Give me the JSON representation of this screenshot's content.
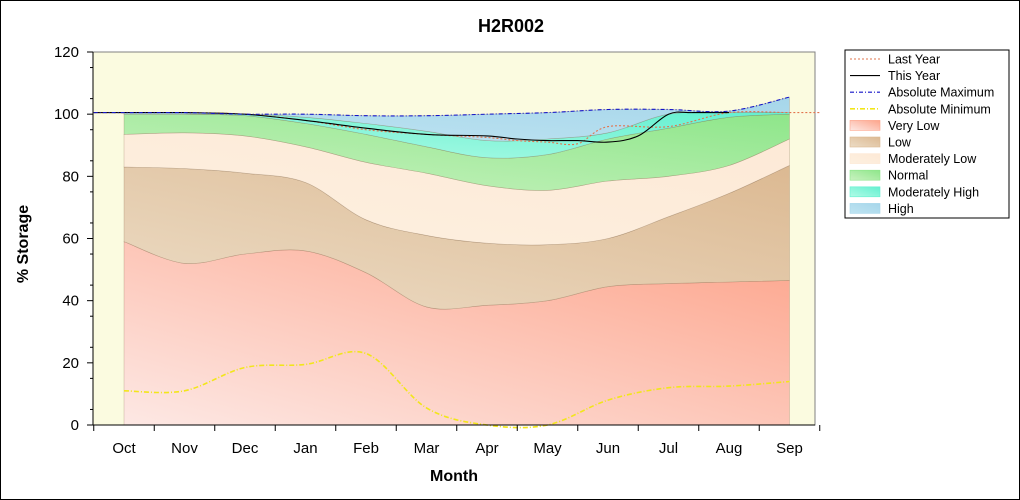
{
  "chart_data": {
    "type": "area",
    "title": "H2R002",
    "xlabel": "Month",
    "ylabel": "% Storage",
    "categories": [
      "Oct",
      "Nov",
      "Dec",
      "Jan",
      "Feb",
      "Mar",
      "Apr",
      "May",
      "Jun",
      "Jul",
      "Aug",
      "Sep"
    ],
    "ylim": [
      0,
      120
    ],
    "yticks": [
      0,
      20,
      40,
      60,
      80,
      100,
      120
    ],
    "bands": [
      {
        "name": "Very Low",
        "colors": [
          "#fde8e4",
          "#fda48b"
        ],
        "lower": [
          0,
          0,
          0,
          0,
          0,
          0,
          0,
          0,
          0,
          0,
          0,
          0
        ],
        "upper": [
          59,
          52,
          55,
          56,
          49,
          38,
          38.5,
          40,
          44.5,
          45.5,
          46,
          46.5
        ]
      },
      {
        "name": "Low",
        "colors": [
          "#ecdcc5",
          "#dcb992"
        ],
        "lower": [
          59,
          52,
          55,
          56,
          49,
          38,
          38.5,
          40,
          44.5,
          45.5,
          46,
          46.5
        ],
        "upper": [
          83,
          82.5,
          81,
          78,
          66,
          61,
          58.5,
          58,
          60,
          67,
          74.5,
          83.5
        ]
      },
      {
        "name": "Moderately Low",
        "colors": [
          "#fdf0e0",
          "#fde9d6"
        ],
        "lower": [
          83,
          82.5,
          81,
          78,
          66,
          61,
          58.5,
          58,
          60,
          67,
          74.5,
          83.5
        ],
        "upper": [
          93.5,
          94,
          93,
          89.5,
          84.5,
          81,
          77,
          75.5,
          78.5,
          80,
          83.5,
          92
        ]
      },
      {
        "name": "Normal",
        "colors": [
          "#c9f2c0",
          "#8ee68a"
        ],
        "lower": [
          93.5,
          94,
          93,
          89.5,
          84.5,
          81,
          77,
          75.5,
          78.5,
          80,
          83.5,
          92
        ],
        "upper": [
          100,
          100,
          99.5,
          97,
          93.5,
          89.5,
          86,
          87,
          92,
          95.5,
          99,
          100
        ]
      },
      {
        "name": "Moderately High",
        "colors": [
          "#b0fbe6",
          "#63f0d0"
        ],
        "lower": [
          100,
          100,
          99.5,
          97,
          93.5,
          89.5,
          86,
          87,
          92,
          95.5,
          99,
          100
        ],
        "upper": [
          100,
          100,
          100,
          99,
          97,
          94.5,
          91.5,
          92,
          94,
          100,
          100.5,
          100.5
        ]
      },
      {
        "name": "High",
        "colors": [
          "#bfe4f2",
          "#a6d6ea"
        ],
        "lower": [
          100,
          100,
          100,
          99,
          97,
          94.5,
          91.5,
          92,
          94,
          100,
          100.5,
          100.5
        ],
        "upper": [
          100.5,
          100.5,
          100,
          100,
          99.5,
          99.5,
          100,
          100.5,
          101.5,
          101.5,
          101,
          105.5
        ]
      }
    ],
    "lines": [
      {
        "name": "Last Year",
        "color": "#e2744e",
        "dash": "2,2",
        "x": [
          -0.5,
          0,
          1,
          2,
          3,
          4,
          5,
          6,
          6.5,
          7,
          7.5,
          8,
          9,
          10,
          11,
          11.5
        ],
        "y": [
          100.5,
          100.5,
          100.5,
          100,
          98,
          95,
          93.5,
          92.5,
          91.5,
          91,
          90.5,
          96,
          96,
          100.5,
          100.5,
          100.5
        ]
      },
      {
        "name": "This Year",
        "color": "#000000",
        "dash": "",
        "x": [
          -0.5,
          0,
          1,
          2,
          3,
          4,
          5,
          6,
          6.5,
          7,
          7.5,
          8,
          8.5,
          9,
          9.4,
          10
        ],
        "y": [
          100.5,
          100.5,
          100.5,
          100,
          98,
          95.5,
          93.5,
          93,
          92,
          91.5,
          91.5,
          91,
          93,
          100,
          100.5,
          100.5
        ]
      },
      {
        "name": "Absolute Maximum",
        "color": "#1414c8",
        "dash": "4,2,1,2",
        "x": [
          -0.5,
          0,
          1,
          2,
          3,
          4,
          5,
          6,
          7,
          8,
          9,
          10,
          11
        ],
        "y": [
          100.5,
          100.5,
          100.5,
          100,
          100,
          99.5,
          99.5,
          100,
          100.5,
          101.5,
          101.5,
          101,
          105.5
        ]
      },
      {
        "name": "Absolute Minimum",
        "color": "#f2e61a",
        "dash": "5,2,1,2",
        "x": [
          0,
          1,
          2,
          3,
          4,
          5,
          6,
          7,
          8,
          9,
          10,
          11
        ],
        "y": [
          11,
          11,
          18.5,
          19.5,
          23,
          5.5,
          0,
          0,
          8,
          12,
          12.5,
          14
        ]
      }
    ],
    "grid": false,
    "legend_position": "right"
  }
}
